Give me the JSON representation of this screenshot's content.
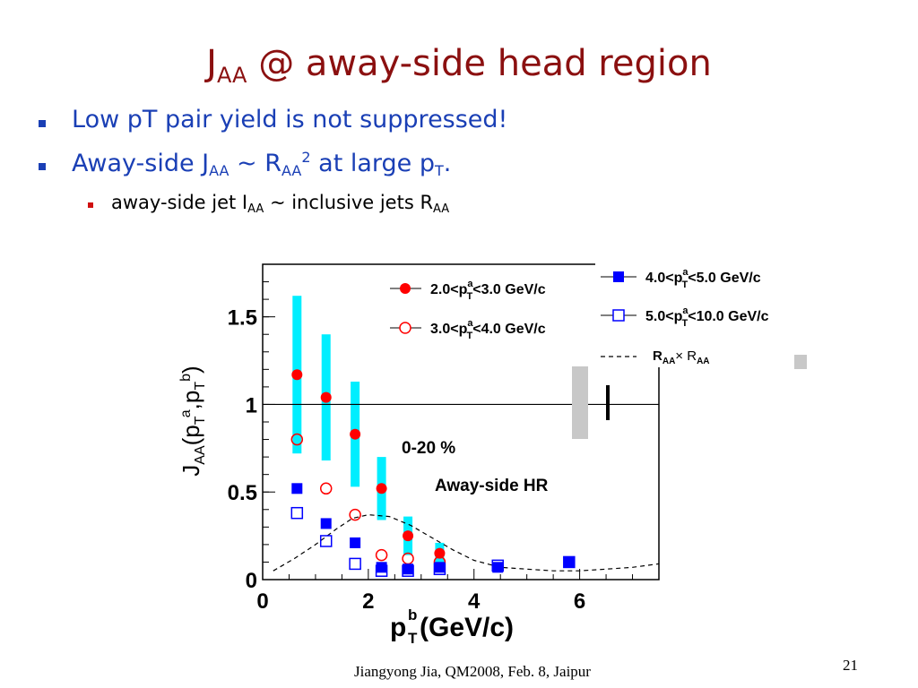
{
  "slide": {
    "title_main": "J",
    "title_sub": "AA",
    "title_rest": " @ away-side head region",
    "footer": "Jiangyong Jia, QM2008, Feb. 8, Jaipur",
    "page_number": "21"
  },
  "bullets": [
    {
      "text": "Low pT pair yield is not suppressed!"
    },
    {
      "parts": [
        "Away-side J",
        "AA",
        " ~ R",
        "AA",
        "2",
        " at large p",
        "T",
        "."
      ]
    }
  ],
  "sub_bullets": [
    {
      "parts": [
        "away-side jet I",
        "AA",
        " ~ inclusive jets R",
        "AA"
      ]
    }
  ],
  "chart_data": {
    "type": "scatter",
    "xlabel_main": "p",
    "xlabel_sup": "b",
    "xlabel_sub": "T",
    "xlabel_unit": " (GeV/c)",
    "ylabel": "J_AA(p_T^a,p_T^b)",
    "xlim": [
      0,
      7.5
    ],
    "ylim": [
      0,
      1.8
    ],
    "xticks": [
      "0",
      "2",
      "4",
      "6"
    ],
    "yticks": [
      "0",
      "0.5",
      "1",
      "1.5"
    ],
    "reference_line": 1,
    "annotations": [
      "0-20 %",
      "Away-side HR"
    ],
    "series": [
      {
        "name": "2.0<p_T^a<3.0 GeV/c",
        "marker": "filled-circle",
        "color": "#ff0000",
        "x": [
          0.65,
          1.2,
          1.75,
          2.25,
          2.75,
          3.35
        ],
        "y": [
          1.17,
          1.04,
          0.83,
          0.52,
          0.25,
          0.15
        ],
        "sys_err": [
          0.45,
          0.36,
          0.3,
          0.18,
          0.11,
          0.06
        ]
      },
      {
        "name": "3.0<p_T^a<4.0 GeV/c",
        "marker": "open-circle",
        "color": "#ff0000",
        "x": [
          0.65,
          1.2,
          1.75,
          2.25,
          2.75,
          3.35
        ],
        "y": [
          0.8,
          0.52,
          0.37,
          0.14,
          0.12,
          0.1
        ],
        "sys_err": []
      },
      {
        "name": "4.0<p_T^a<5.0 GeV/c",
        "marker": "filled-square",
        "color": "#0000ff",
        "x": [
          0.65,
          1.2,
          1.75,
          2.25,
          2.75,
          3.35,
          4.45,
          5.8
        ],
        "y": [
          0.52,
          0.32,
          0.21,
          0.07,
          0.06,
          0.07,
          0.07,
          0.1
        ],
        "sys_err": []
      },
      {
        "name": "5.0<p_T^a<10.0 GeV/c",
        "marker": "open-square",
        "color": "#0000ff",
        "x": [
          0.65,
          1.2,
          1.75,
          2.25,
          2.75,
          3.35,
          4.45,
          5.8
        ],
        "y": [
          0.38,
          0.22,
          0.09,
          0.05,
          0.05,
          0.06,
          0.08,
          0.1
        ],
        "sys_err": []
      },
      {
        "name": "R_AA x R_AA",
        "marker": "dashed-line",
        "color": "#000000",
        "x": [
          0.2,
          0.6,
          1.0,
          1.4,
          1.7,
          2.0,
          2.4,
          2.8,
          3.2,
          3.6,
          4.0,
          4.5,
          5.0,
          5.5,
          6.0,
          6.5,
          7.0,
          7.5
        ],
        "y": [
          0.05,
          0.12,
          0.2,
          0.29,
          0.35,
          0.37,
          0.36,
          0.31,
          0.24,
          0.17,
          0.11,
          0.07,
          0.06,
          0.05,
          0.05,
          0.06,
          0.07,
          0.09
        ]
      }
    ],
    "legend": [
      {
        "label_parts": [
          "2.0<p",
          "a",
          "T",
          "<3.0 GeV/c"
        ],
        "marker": "filled-circle",
        "color": "#ff0000"
      },
      {
        "label_parts": [
          "3.0<p",
          "a",
          "T",
          "<4.0 GeV/c"
        ],
        "marker": "open-circle",
        "color": "#ff0000"
      },
      {
        "label_parts": [
          "4.0<p",
          "a",
          "T",
          "<5.0 GeV/c"
        ],
        "marker": "filled-square",
        "color": "#0000ff"
      },
      {
        "label_parts": [
          "5.0<p",
          "a",
          "T",
          "<10.0 GeV/c"
        ],
        "marker": "open-square",
        "color": "#0000ff"
      },
      {
        "label_parts": [
          "R",
          "",
          "AA",
          "× R",
          "AA"
        ],
        "marker": "dashed-line",
        "color": "#000000"
      }
    ]
  }
}
